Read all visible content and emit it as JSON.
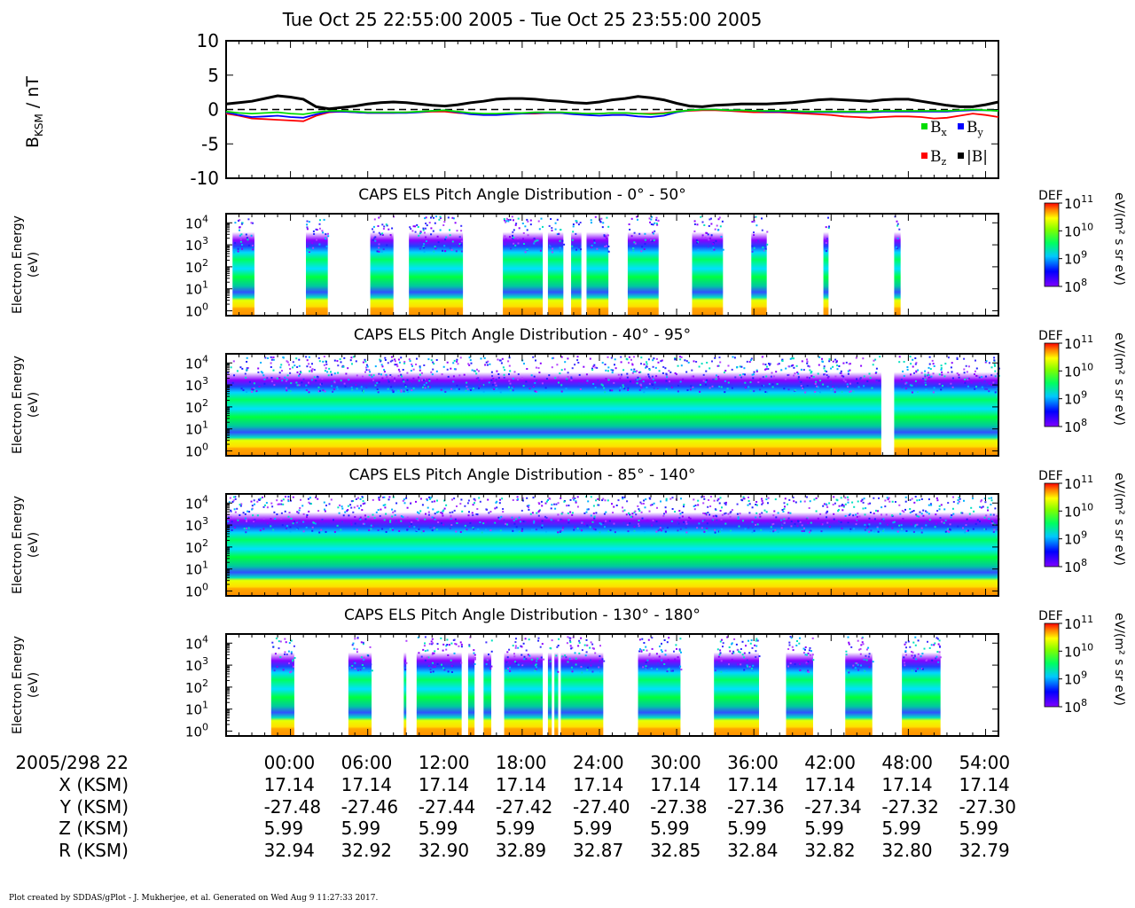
{
  "title": "Tue Oct 25 22:55:00 2005 - Tue Oct 25 23:55:00 2005",
  "colors": {
    "Bx": "#00dd00",
    "By": "#0000ff",
    "Bz": "#ff0000",
    "Bmag": "#000000",
    "zero_line": "#000000"
  },
  "chart_data": [
    {
      "type": "line",
      "ylabel_main": "B",
      "ylabel_sub": "KSM",
      "ylabel_unit": " / nT",
      "ylim": [
        -10,
        10
      ],
      "yticks": [
        10,
        5,
        0,
        -5,
        -10
      ],
      "xlim_minutes": [
        55,
        115
      ],
      "legend_position": "bottom-right",
      "legend": [
        {
          "main": "B",
          "sub": "x",
          "color": "#00dd00"
        },
        {
          "main": "B",
          "sub": "y",
          "color": "#0000ff"
        },
        {
          "main": "B",
          "sub": "z",
          "color": "#ff0000"
        },
        {
          "main": "|B|",
          "sub": "",
          "color": "#000000"
        }
      ],
      "x_minutes": [
        55,
        56,
        57,
        58,
        59,
        60,
        61,
        62,
        63,
        64,
        65,
        66,
        67,
        68,
        69,
        70,
        71,
        72,
        73,
        74,
        75,
        76,
        77,
        78,
        79,
        80,
        81,
        82,
        83,
        84,
        85,
        86,
        87,
        88,
        89,
        90,
        91,
        92,
        93,
        94,
        95,
        96,
        97,
        98,
        99,
        100,
        101,
        102,
        103,
        104,
        105,
        106,
        107,
        108,
        109,
        110,
        111,
        112,
        113,
        114,
        115
      ],
      "series": [
        {
          "key": "Bmag",
          "values": [
            0.8,
            1.0,
            1.2,
            1.6,
            2.0,
            1.8,
            1.5,
            0.4,
            0.1,
            0.3,
            0.5,
            0.8,
            1.0,
            1.1,
            1.0,
            0.8,
            0.6,
            0.5,
            0.7,
            1.0,
            1.2,
            1.5,
            1.6,
            1.6,
            1.5,
            1.3,
            1.2,
            1.0,
            0.9,
            1.1,
            1.4,
            1.6,
            1.9,
            1.7,
            1.4,
            0.9,
            0.5,
            0.4,
            0.6,
            0.7,
            0.8,
            0.8,
            0.8,
            0.9,
            1.0,
            1.2,
            1.4,
            1.5,
            1.4,
            1.3,
            1.2,
            1.4,
            1.5,
            1.5,
            1.2,
            0.9,
            0.6,
            0.4,
            0.4,
            0.7,
            1.1
          ]
        },
        {
          "key": "Bx",
          "values": [
            -0.3,
            -0.5,
            -0.6,
            -0.5,
            -0.4,
            -0.6,
            -0.7,
            -0.4,
            -0.2,
            -0.2,
            -0.3,
            -0.4,
            -0.4,
            -0.4,
            -0.4,
            -0.3,
            -0.2,
            -0.1,
            -0.3,
            -0.5,
            -0.6,
            -0.6,
            -0.5,
            -0.5,
            -0.4,
            -0.4,
            -0.4,
            -0.5,
            -0.6,
            -0.6,
            -0.5,
            -0.5,
            -0.6,
            -0.7,
            -0.6,
            -0.3,
            -0.1,
            0.0,
            0.0,
            -0.1,
            -0.1,
            -0.2,
            -0.2,
            -0.2,
            -0.2,
            -0.3,
            -0.3,
            -0.3,
            -0.3,
            -0.3,
            -0.3,
            -0.2,
            -0.2,
            -0.2,
            -0.2,
            -0.2,
            -0.2,
            -0.1,
            0.0,
            -0.1,
            -0.2
          ]
        },
        {
          "key": "By",
          "values": [
            -0.4,
            -0.8,
            -1.1,
            -1.0,
            -0.9,
            -1.1,
            -1.2,
            -0.7,
            -0.3,
            -0.3,
            -0.4,
            -0.5,
            -0.5,
            -0.5,
            -0.5,
            -0.4,
            -0.2,
            -0.1,
            -0.4,
            -0.7,
            -0.8,
            -0.8,
            -0.7,
            -0.6,
            -0.5,
            -0.5,
            -0.5,
            -0.7,
            -0.8,
            -0.9,
            -0.8,
            -0.8,
            -1.0,
            -1.1,
            -0.9,
            -0.4,
            -0.1,
            0.0,
            0.0,
            -0.1,
            -0.1,
            -0.2,
            -0.3,
            -0.3,
            -0.3,
            -0.4,
            -0.4,
            -0.4,
            -0.4,
            -0.4,
            -0.4,
            -0.3,
            -0.3,
            -0.3,
            -0.3,
            -0.3,
            -0.3,
            -0.2,
            -0.1,
            -0.1,
            -0.2
          ]
        },
        {
          "key": "Bz",
          "values": [
            -0.6,
            -0.9,
            -1.3,
            -1.4,
            -1.5,
            -1.6,
            -1.7,
            -0.9,
            -0.4,
            -0.3,
            -0.4,
            -0.5,
            -0.5,
            -0.5,
            -0.4,
            -0.4,
            -0.3,
            -0.3,
            -0.5,
            -0.6,
            -0.7,
            -0.7,
            -0.6,
            -0.6,
            -0.6,
            -0.5,
            -0.5,
            -0.5,
            -0.6,
            -0.6,
            -0.5,
            -0.5,
            -0.6,
            -0.6,
            -0.5,
            -0.3,
            -0.2,
            -0.1,
            -0.1,
            -0.2,
            -0.3,
            -0.4,
            -0.4,
            -0.4,
            -0.5,
            -0.6,
            -0.7,
            -0.8,
            -1.0,
            -1.1,
            -1.2,
            -1.1,
            -1.0,
            -1.0,
            -1.1,
            -1.3,
            -1.2,
            -0.9,
            -0.6,
            -0.8,
            -1.1
          ]
        }
      ]
    },
    {
      "type": "heatmap",
      "title": "CAPS ELS Pitch Angle Distribution - 0° - 50°",
      "ylabel": [
        "Electron Energy",
        "(eV)"
      ],
      "y_scale": "log",
      "ylim_eV": [
        0.6,
        26000
      ],
      "yticks": [
        {
          "base": "10",
          "exp": "4"
        },
        {
          "base": "10",
          "exp": "3"
        },
        {
          "base": "10",
          "exp": "2"
        },
        {
          "base": "10",
          "exp": "1"
        },
        {
          "base": "10",
          "exp": "0"
        }
      ],
      "colorbar": {
        "label": "DEF",
        "unit": "eV/(m² s sr eV)",
        "ticks": [
          {
            "base": "10",
            "exp": "11"
          },
          {
            "base": "10",
            "exp": "10"
          },
          {
            "base": "10",
            "exp": "9"
          },
          {
            "base": "10",
            "exp": "8"
          }
        ],
        "range_log10": [
          8,
          11
        ]
      },
      "data_intervals_minutes": [
        [
          55.5,
          57.2
        ],
        [
          61.2,
          62.9
        ],
        [
          66.2,
          68.0
        ],
        [
          69.2,
          73.4
        ],
        [
          76.5,
          79.6
        ],
        [
          80.0,
          81.2
        ],
        [
          81.8,
          82.6
        ],
        [
          83.0,
          84.7
        ],
        [
          86.2,
          88.6
        ],
        [
          91.2,
          93.6
        ],
        [
          95.8,
          97.0
        ],
        [
          101.4,
          101.8
        ],
        [
          106.9,
          107.4
        ]
      ]
    },
    {
      "type": "heatmap",
      "title": "CAPS ELS Pitch Angle Distribution - 40° - 95°",
      "ylabel": [
        "Electron Energy",
        "(eV)"
      ],
      "y_scale": "log",
      "ylim_eV": [
        0.6,
        26000
      ],
      "yticks": [
        {
          "base": "10",
          "exp": "4"
        },
        {
          "base": "10",
          "exp": "3"
        },
        {
          "base": "10",
          "exp": "2"
        },
        {
          "base": "10",
          "exp": "1"
        },
        {
          "base": "10",
          "exp": "0"
        }
      ],
      "colorbar": {
        "label": "DEF",
        "unit": "eV/(m² s sr eV)",
        "ticks": [
          {
            "base": "10",
            "exp": "11"
          },
          {
            "base": "10",
            "exp": "10"
          },
          {
            "base": "10",
            "exp": "9"
          },
          {
            "base": "10",
            "exp": "8"
          }
        ],
        "range_log10": [
          8,
          11
        ]
      },
      "data_intervals_minutes": [
        [
          55.0,
          105.9
        ],
        [
          106.9,
          115.0
        ]
      ]
    },
    {
      "type": "heatmap",
      "title": "CAPS ELS Pitch Angle Distribution - 85° - 140°",
      "ylabel": [
        "Electron Energy",
        "(eV)"
      ],
      "y_scale": "log",
      "ylim_eV": [
        0.6,
        26000
      ],
      "yticks": [
        {
          "base": "10",
          "exp": "4"
        },
        {
          "base": "10",
          "exp": "3"
        },
        {
          "base": "10",
          "exp": "2"
        },
        {
          "base": "10",
          "exp": "1"
        },
        {
          "base": "10",
          "exp": "0"
        }
      ],
      "colorbar": {
        "label": "DEF",
        "unit": "eV/(m² s sr eV)",
        "ticks": [
          {
            "base": "10",
            "exp": "11"
          },
          {
            "base": "10",
            "exp": "10"
          },
          {
            "base": "10",
            "exp": "9"
          },
          {
            "base": "10",
            "exp": "8"
          }
        ],
        "range_log10": [
          8,
          11
        ]
      },
      "data_intervals_minutes": [
        [
          55.0,
          115.0
        ]
      ]
    },
    {
      "type": "heatmap",
      "title": "CAPS ELS Pitch Angle Distribution - 130° - 180°",
      "ylabel": [
        "Electron Energy",
        "(eV)"
      ],
      "y_scale": "log",
      "ylim_eV": [
        0.6,
        26000
      ],
      "yticks": [
        {
          "base": "10",
          "exp": "4"
        },
        {
          "base": "10",
          "exp": "3"
        },
        {
          "base": "10",
          "exp": "2"
        },
        {
          "base": "10",
          "exp": "1"
        },
        {
          "base": "10",
          "exp": "0"
        }
      ],
      "colorbar": {
        "label": "DEF",
        "unit": "eV/(m² s sr eV)",
        "ticks": [
          {
            "base": "10",
            "exp": "11"
          },
          {
            "base": "10",
            "exp": "10"
          },
          {
            "base": "10",
            "exp": "9"
          },
          {
            "base": "10",
            "exp": "8"
          }
        ],
        "range_log10": [
          8,
          11
        ]
      },
      "data_intervals_minutes": [
        [
          58.5,
          60.3
        ],
        [
          64.5,
          66.3
        ],
        [
          68.8,
          69.0
        ],
        [
          69.8,
          73.3
        ],
        [
          73.8,
          74.3
        ],
        [
          75.0,
          75.6
        ],
        [
          76.6,
          79.6
        ],
        [
          80.0,
          80.3
        ],
        [
          80.5,
          80.8
        ],
        [
          81.0,
          84.3
        ],
        [
          87.0,
          90.3
        ],
        [
          92.9,
          96.4
        ],
        [
          98.5,
          100.6
        ],
        [
          103.1,
          105.2
        ],
        [
          107.5,
          110.5
        ]
      ]
    }
  ],
  "x_axis": {
    "row_labels": [
      "2005/298 22",
      "X (KSM)",
      "Y (KSM)",
      "Z (KSM)",
      "R (KSM)"
    ],
    "ticks": [
      {
        "minutes": 60,
        "time": "00:00",
        "x": "17.14",
        "y": "-27.48",
        "z": "5.99",
        "r": "32.94"
      },
      {
        "minutes": 66,
        "time": "06:00",
        "x": "17.14",
        "y": "-27.46",
        "z": "5.99",
        "r": "32.92"
      },
      {
        "minutes": 72,
        "time": "12:00",
        "x": "17.14",
        "y": "-27.44",
        "z": "5.99",
        "r": "32.90"
      },
      {
        "minutes": 78,
        "time": "18:00",
        "x": "17.14",
        "y": "-27.42",
        "z": "5.99",
        "r": "32.89"
      },
      {
        "minutes": 84,
        "time": "24:00",
        "x": "17.14",
        "y": "-27.40",
        "z": "5.99",
        "r": "32.87"
      },
      {
        "minutes": 90,
        "time": "30:00",
        "x": "17.14",
        "y": "-27.38",
        "z": "5.99",
        "r": "32.85"
      },
      {
        "minutes": 96,
        "time": "36:00",
        "x": "17.14",
        "y": "-27.36",
        "z": "5.99",
        "r": "32.84"
      },
      {
        "minutes": 102,
        "time": "42:00",
        "x": "17.14",
        "y": "-27.34",
        "z": "5.99",
        "r": "32.82"
      },
      {
        "minutes": 108,
        "time": "48:00",
        "x": "17.14",
        "y": "-27.32",
        "z": "5.99",
        "r": "32.80"
      },
      {
        "minutes": 114,
        "time": "54:00",
        "x": "17.14",
        "y": "-27.30",
        "z": "5.99",
        "r": "32.79"
      }
    ]
  },
  "footer": "Plot created by SDDAS/gPlot - J. Mukherjee, et al.  Generated on Wed Aug 9 11:27:33 2017."
}
